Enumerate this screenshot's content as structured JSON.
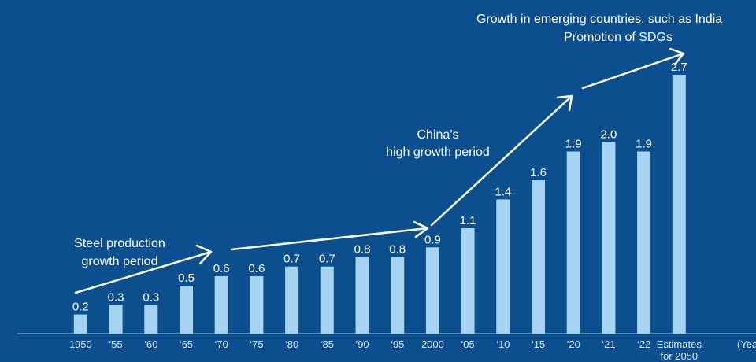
{
  "chart_data": {
    "type": "bar",
    "categories": [
      "1950",
      "‘55",
      "‘60",
      "‘65",
      "‘70",
      "‘75",
      "‘80",
      "‘85",
      "’90",
      "‘95",
      "2000",
      "‘05",
      "‘10",
      "‘15",
      "’20",
      "‘21",
      "‘22",
      "Estimates for 2050"
    ],
    "values": [
      0.2,
      0.3,
      0.3,
      0.5,
      0.6,
      0.6,
      0.7,
      0.7,
      0.8,
      0.8,
      0.9,
      1.1,
      1.4,
      1.6,
      1.9,
      2.0,
      1.9,
      2.7
    ],
    "value_labels": [
      "0.2",
      "0.3",
      "0.3",
      "0.5",
      "0.6",
      "0.6",
      "0.7",
      "0.7",
      "0.8",
      "0.8",
      "0.9",
      "1.1",
      "1.4",
      "1.6",
      "1.9",
      "2.0",
      "1.9",
      "2.7"
    ],
    "x_unit_label": "(Year)",
    "ylim": [
      0,
      2.7
    ],
    "grid": false,
    "legend": "none",
    "annotations": {
      "steel": [
        "Steel production",
        "growth period"
      ],
      "china": [
        "China’s",
        "high growth period"
      ],
      "emerging": [
        "Growth in emerging countries, such as India",
        "Promotion of SDGs"
      ]
    },
    "colors": {
      "background": "#0b4f8f",
      "bar": "#a7d3f2",
      "arrow": "#ffffff"
    }
  }
}
